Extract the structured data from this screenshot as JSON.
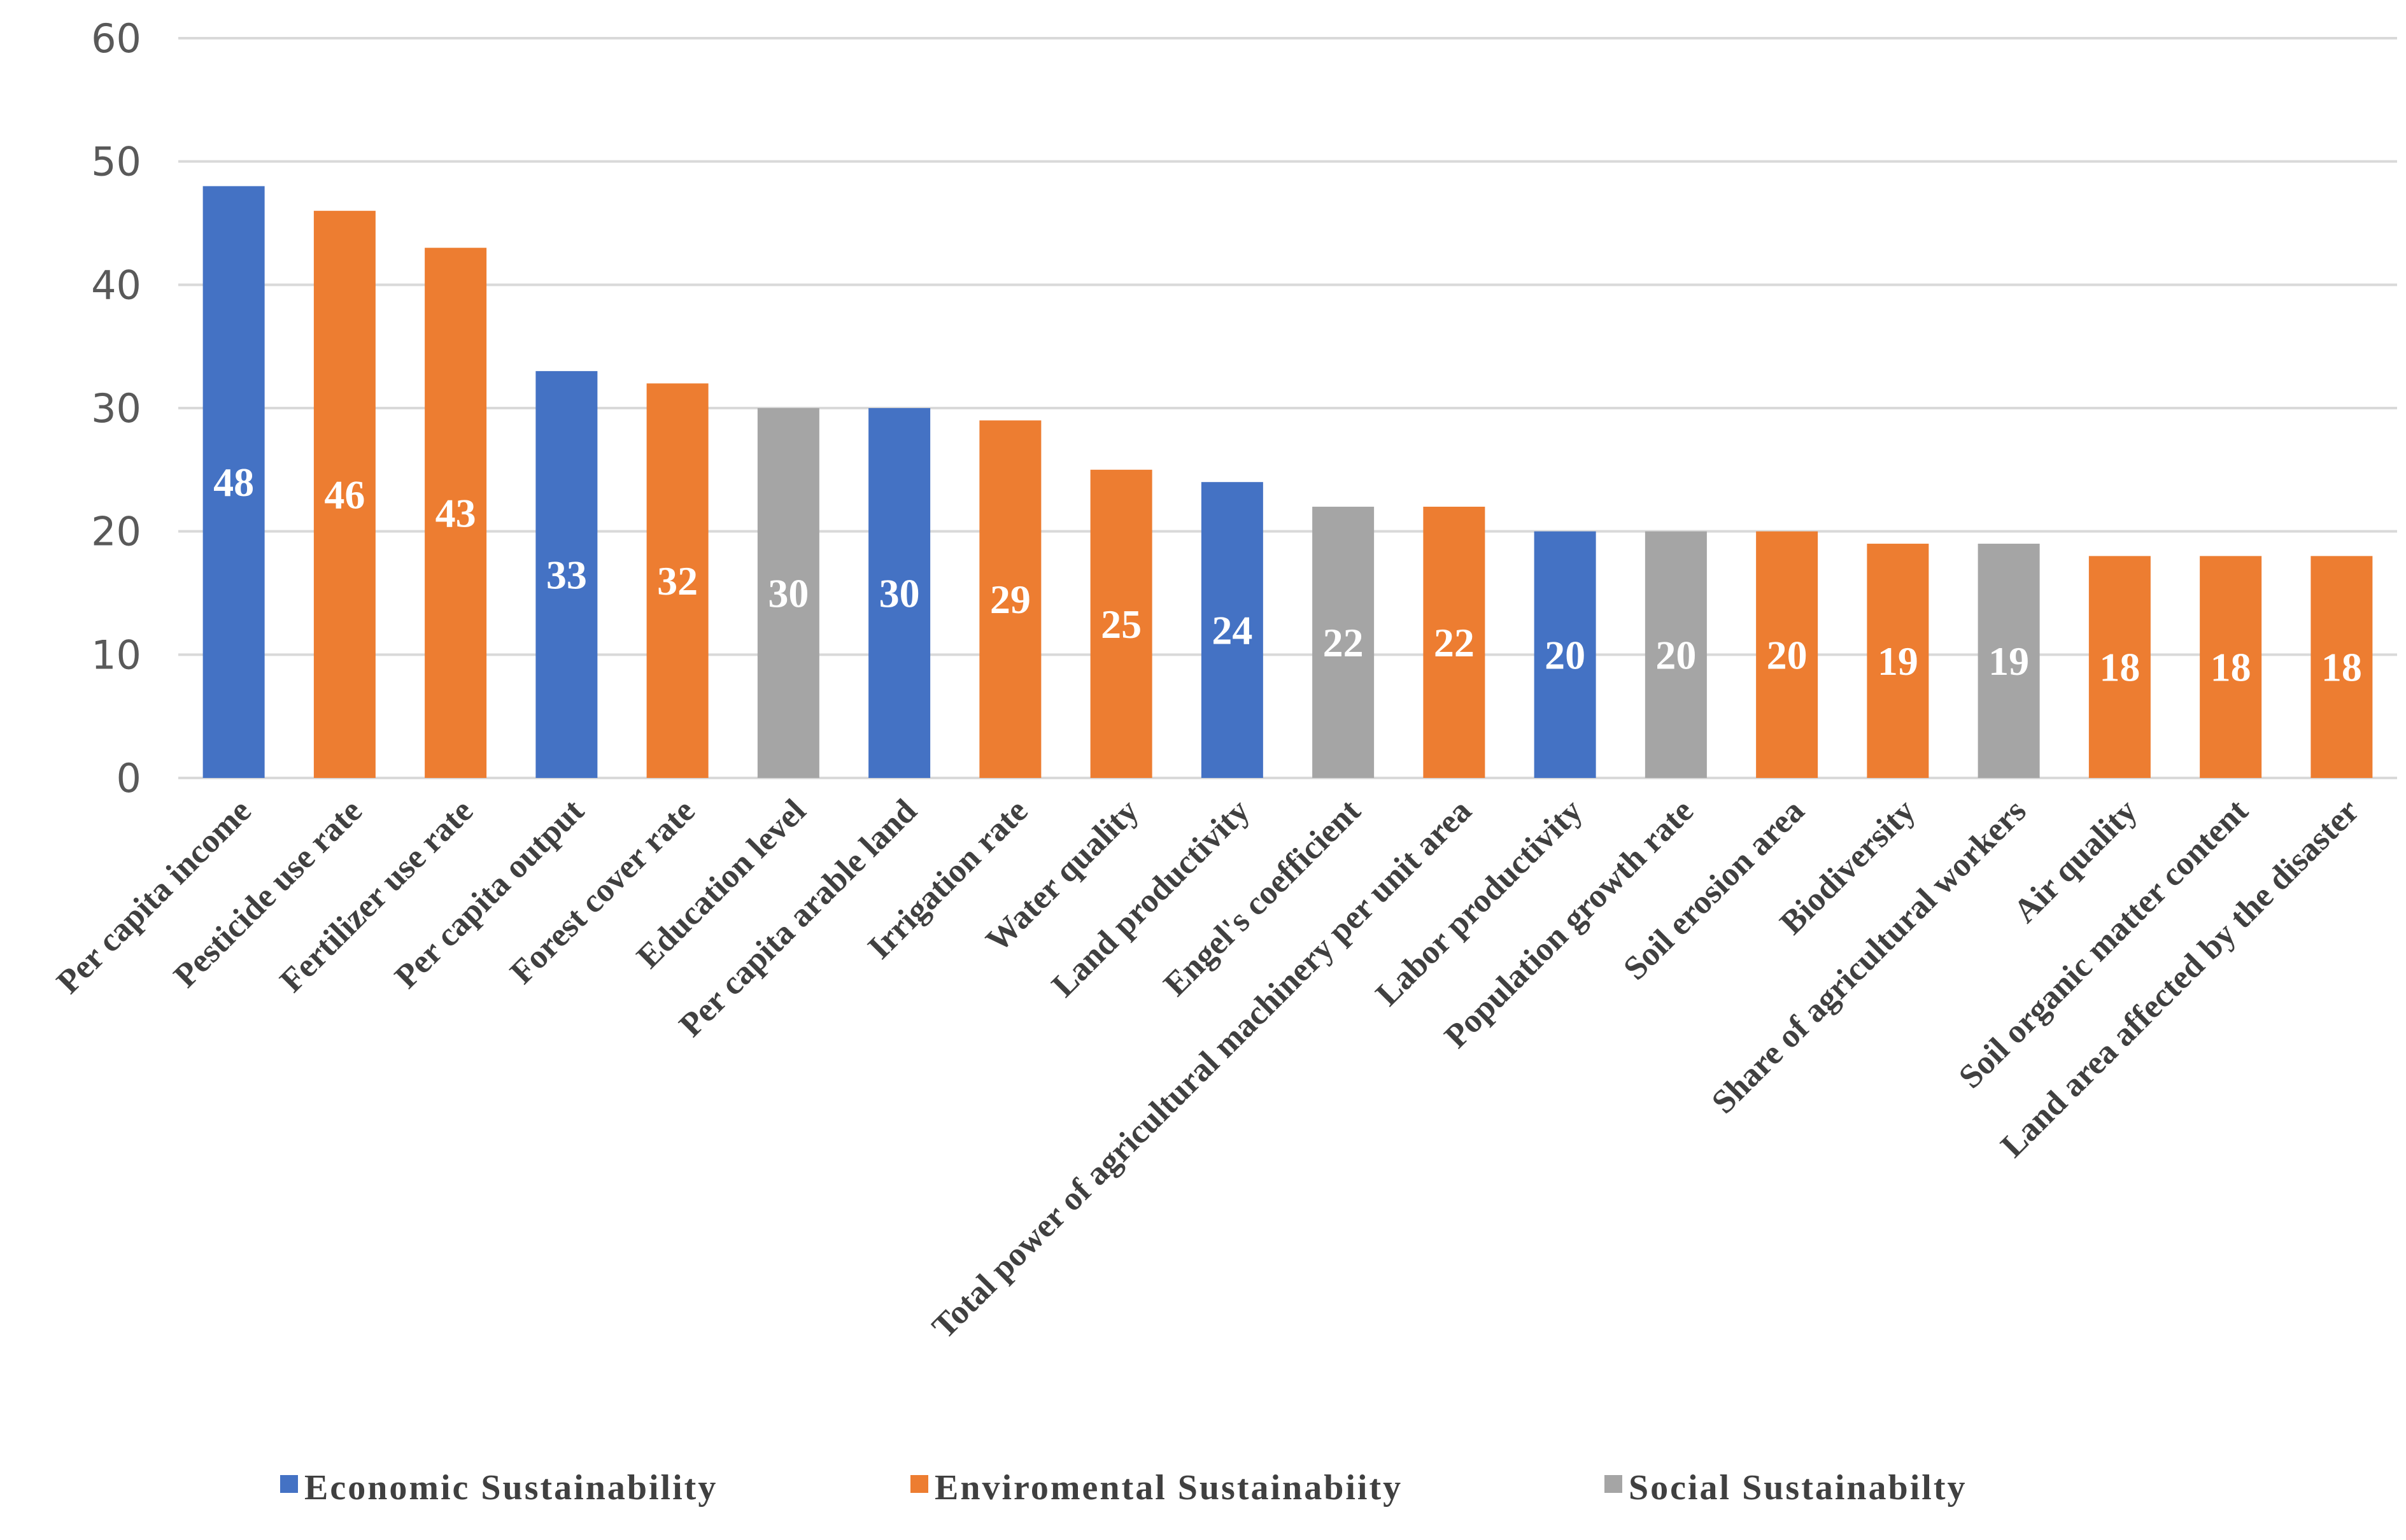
{
  "chart_data": {
    "type": "bar",
    "title": "",
    "xlabel": "",
    "ylabel": "",
    "ylim": [
      0,
      60
    ],
    "yticks": [
      0,
      10,
      20,
      30,
      40,
      50,
      60
    ],
    "grid": "horizontal",
    "legend_position": "bottom",
    "colors": {
      "Economic": "#4472C4",
      "Environmental": "#ED7D31",
      "Social": "#A5A5A5",
      "gridline": "#D9D9D9",
      "axis": "#D9D9D9"
    },
    "legend": [
      {
        "label": "Economic Sustainability",
        "group": "Economic"
      },
      {
        "label": "Enviromental Sustainabiity",
        "group": "Environmental"
      },
      {
        "label": "Social Sustainabilty",
        "group": "Social"
      }
    ],
    "categories": [
      "Per capita income",
      "Pesticide use rate",
      "Fertilizer use rate",
      "Per capita output",
      "Forest cover rate",
      "Education level",
      "Per capita arable land",
      "Irrigation rate",
      "Water quality",
      "Land productivity",
      "Engel's coefficient",
      "Total power of agricultural machinery per unit area",
      "Labor productivity",
      "Population growth rate",
      "Soil erosion area",
      "Biodiversity",
      "Share of agricultural workers",
      "Air quality",
      "Soil organic matter content",
      "Land area affected by the disaster"
    ],
    "values": [
      48,
      46,
      43,
      33,
      32,
      30,
      30,
      29,
      25,
      24,
      22,
      22,
      20,
      20,
      20,
      19,
      19,
      18,
      18,
      18
    ],
    "groups": [
      "Economic",
      "Environmental",
      "Environmental",
      "Economic",
      "Environmental",
      "Social",
      "Economic",
      "Environmental",
      "Environmental",
      "Economic",
      "Social",
      "Environmental",
      "Economic",
      "Social",
      "Environmental",
      "Environmental",
      "Social",
      "Environmental",
      "Environmental",
      "Environmental"
    ]
  }
}
